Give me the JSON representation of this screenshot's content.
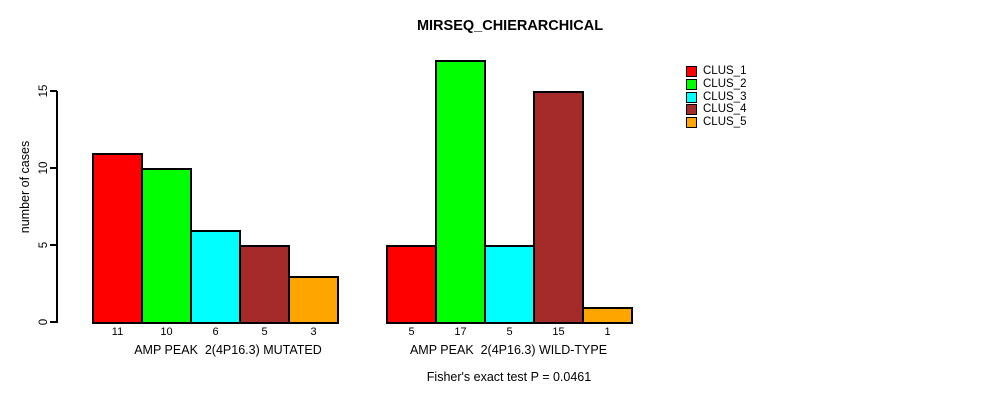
{
  "chart_data": {
    "type": "bar",
    "title": "MIRSEQ_CHIERARCHICAL",
    "ylabel": "number of cases",
    "xlabel": "",
    "ylim": [
      0,
      17
    ],
    "yticks": [
      0,
      5,
      10,
      15
    ],
    "grid": false,
    "legend_position": "right",
    "legend": [
      "CLUS_1",
      "CLUS_2",
      "CLUS_3",
      "CLUS_4",
      "CLUS_5"
    ],
    "colors": [
      "#FF0000",
      "#00FF00",
      "#00FFFF",
      "#A52A2A",
      "#FFA500"
    ],
    "groups": [
      {
        "label": "AMP PEAK  2(4P16.3) MUTATED",
        "values": [
          11,
          10,
          6,
          5,
          3
        ]
      },
      {
        "label": "AMP PEAK  2(4P16.3) WILD-TYPE",
        "values": [
          5,
          17,
          5,
          15,
          1
        ]
      }
    ],
    "annotation": "Fisher's exact test P = 0.0461"
  }
}
